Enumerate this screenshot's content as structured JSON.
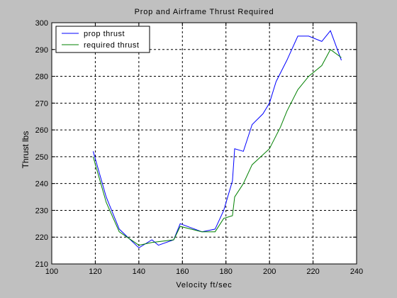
{
  "chart_data": {
    "type": "line",
    "title": "Prop and Airframe Thrust Required",
    "xlabel": "Velocity ft/sec",
    "ylabel": "Thrust lbs",
    "xlim": [
      100,
      240
    ],
    "ylim": [
      210,
      300
    ],
    "xticks": [
      100,
      120,
      140,
      160,
      180,
      200,
      220,
      240
    ],
    "yticks": [
      210,
      220,
      230,
      240,
      250,
      260,
      270,
      280,
      290,
      300
    ],
    "grid": true,
    "legend_position": "top-left",
    "colors": {
      "background": "#c0c0c0",
      "plot_area": "#ffffff",
      "prop": "#0000ff",
      "required": "#008000"
    },
    "series": [
      {
        "name": "prop thrust",
        "color": "#0000ff",
        "x": [
          119,
          125,
          131,
          140,
          146,
          149,
          156,
          159,
          169,
          175,
          179,
          183,
          184,
          188,
          192,
          197,
          200,
          203,
          208,
          213,
          218,
          224,
          228,
          233
        ],
        "y": [
          252,
          235,
          223,
          216,
          219,
          217,
          219,
          225,
          222,
          223,
          230,
          241,
          253,
          252,
          262,
          266,
          270,
          278,
          286,
          295,
          295,
          293,
          297,
          286
        ]
      },
      {
        "name": "required thrust",
        "color": "#008000",
        "x": [
          119,
          125,
          131,
          140,
          146,
          156,
          159,
          169,
          175,
          179,
          183,
          184,
          188,
          192,
          200,
          205,
          208,
          213,
          218,
          224,
          228,
          233
        ],
        "y": [
          250,
          233,
          222,
          217,
          218,
          219,
          224,
          222,
          222,
          227,
          228,
          235,
          240,
          247,
          253,
          261,
          267,
          275,
          280,
          284,
          290,
          287
        ]
      }
    ]
  }
}
